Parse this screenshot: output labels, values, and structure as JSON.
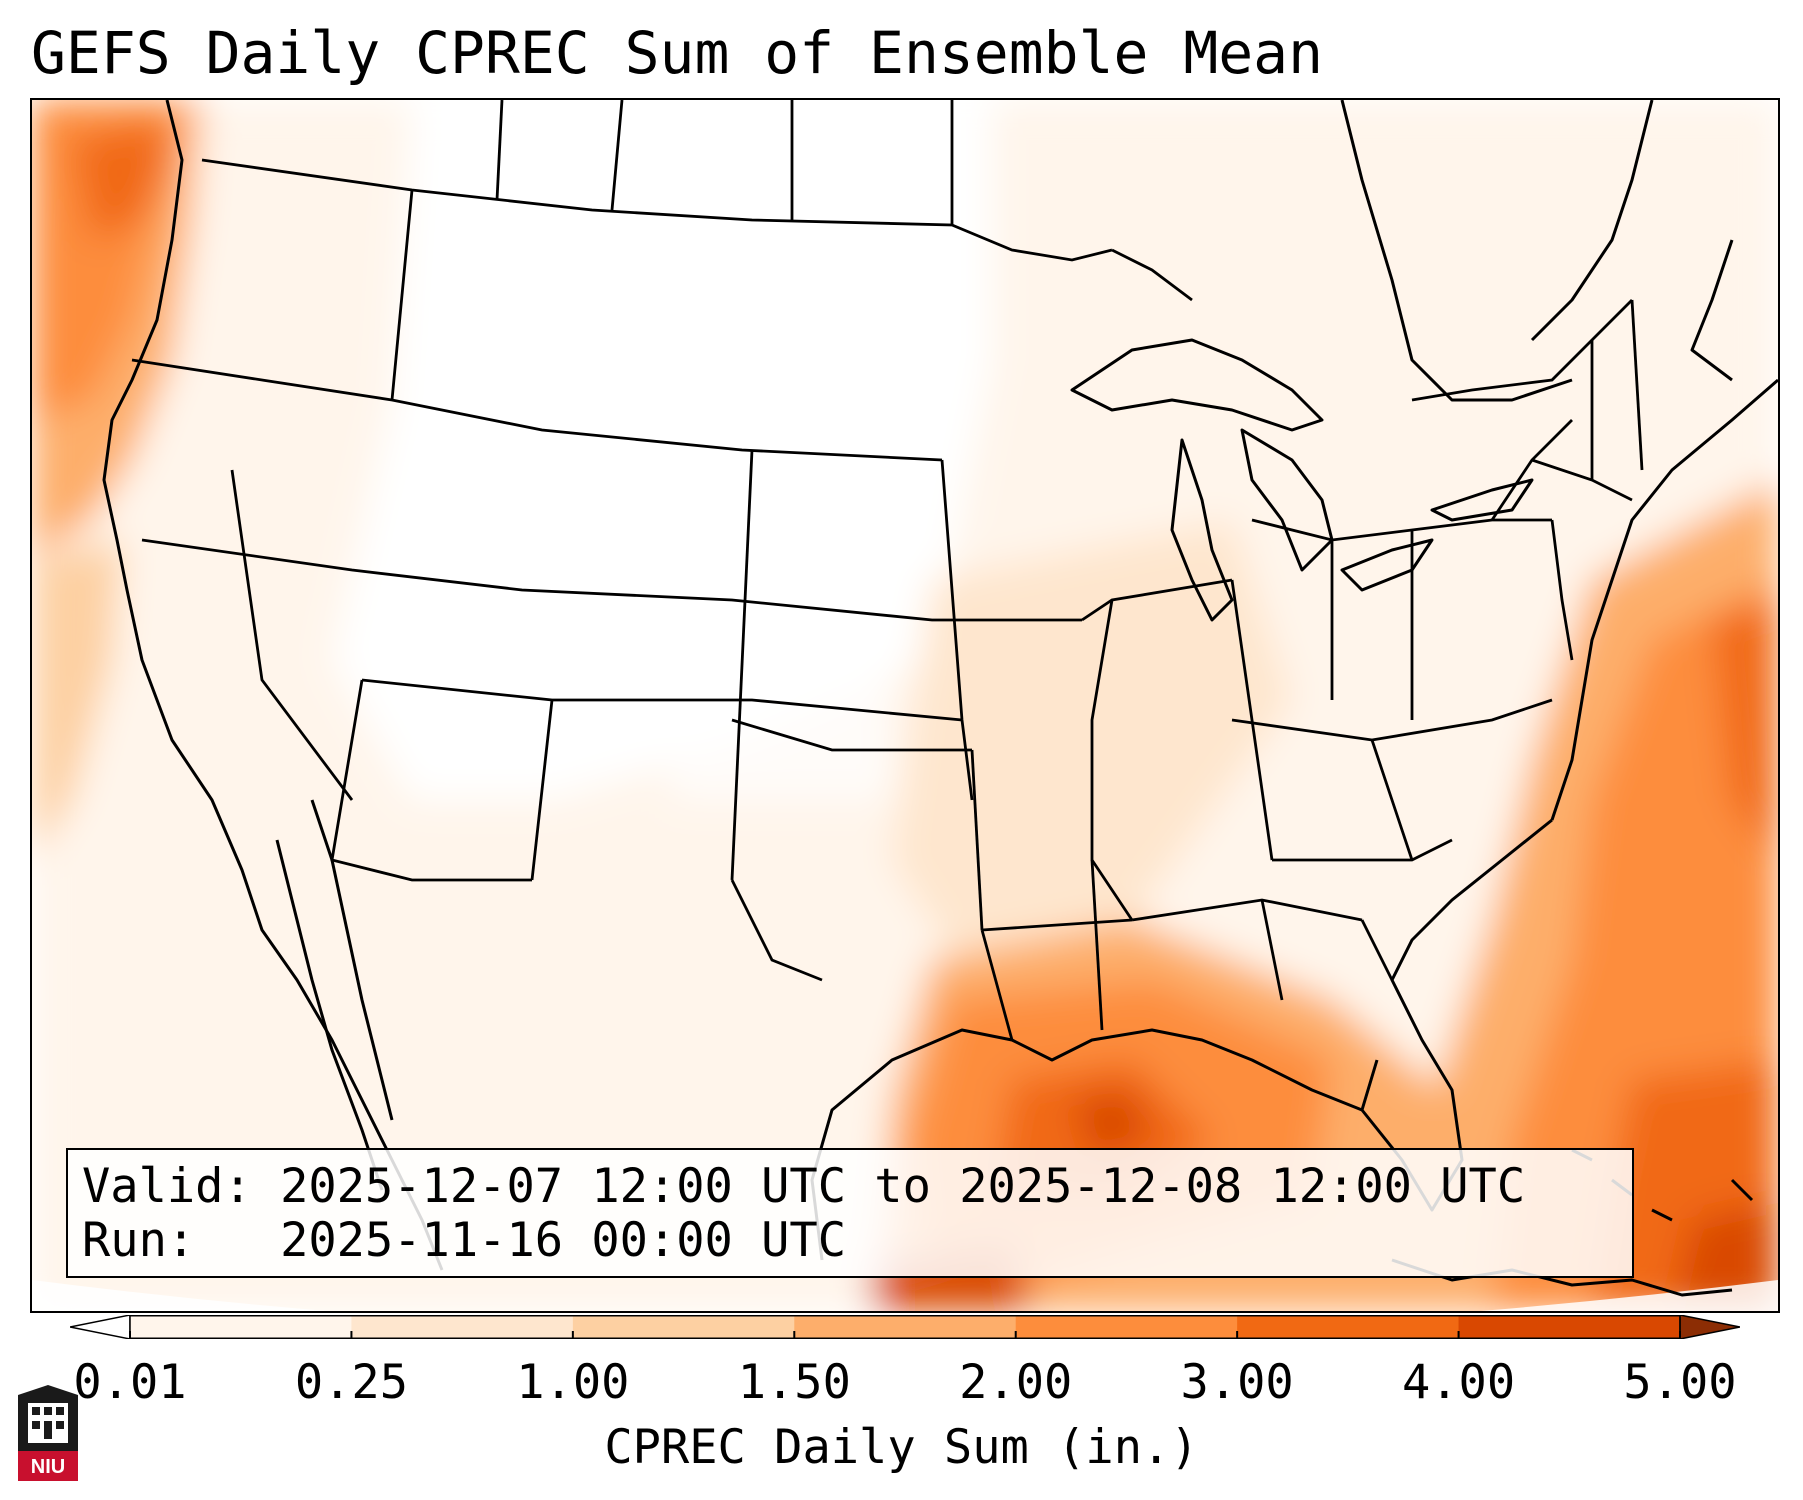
{
  "title": "GEFS Daily CPREC Sum of Ensemble Mean",
  "info": {
    "valid_label": "Valid:",
    "valid_value": "2025-12-07 12:00 UTC to 2025-12-08 12:00 UTC",
    "run_label": "Run:",
    "run_value": "2025-11-16 00:00 UTC"
  },
  "colorbar": {
    "label": "CPREC Daily Sum (in.)",
    "ticks": [
      "0.01",
      "0.25",
      "1.00",
      "1.50",
      "2.00",
      "3.00",
      "4.00",
      "5.00"
    ],
    "colors": [
      "#fff5eb",
      "#fee6ce",
      "#fdd0a2",
      "#fdae6b",
      "#fd8d3c",
      "#f16913",
      "#d94801",
      "#8c2d04"
    ],
    "extend": "both"
  },
  "logo": {
    "text": "NIU",
    "brand_color": "#c8102e"
  },
  "map": {
    "region": "Contiguous United States",
    "ocean_color": "#ffffff",
    "boundary_color": "#000000"
  }
}
